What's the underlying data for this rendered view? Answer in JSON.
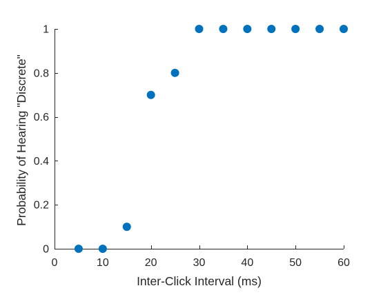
{
  "chart_data": {
    "type": "scatter",
    "title": "",
    "xlabel": "Inter-Click Interval (ms)",
    "ylabel": "Probability of Hearing \"Discrete\"",
    "xlim": [
      0,
      60
    ],
    "ylim": [
      0,
      1
    ],
    "xticks": [
      0,
      10,
      20,
      30,
      40,
      50,
      60
    ],
    "yticks": [
      0,
      0.2,
      0.4,
      0.6,
      0.8,
      1
    ],
    "xtick_labels": [
      "0",
      "10",
      "20",
      "30",
      "40",
      "50",
      "60"
    ],
    "ytick_labels": [
      "0",
      "0.2",
      "0.4",
      "0.6",
      "0.8",
      "1"
    ],
    "grid": false,
    "box": false,
    "marker_color": "#0072BD",
    "axis_color": "#262626",
    "series": [
      {
        "x": [
          5,
          10,
          15,
          20,
          25,
          30,
          35,
          40,
          45,
          50,
          55,
          60
        ],
        "y": [
          0,
          0,
          0.1,
          0.7,
          0.8,
          1,
          1,
          1,
          1,
          1,
          1,
          1
        ]
      }
    ]
  }
}
